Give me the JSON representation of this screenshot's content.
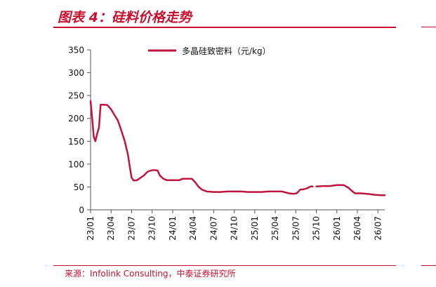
{
  "header": {
    "title": "图表 4：硅料价格走势"
  },
  "footer": {
    "source": "来源：Infolink Consulting，中泰证券研究所"
  },
  "colors": {
    "accent": "#c8102e",
    "series": "#c0143c"
  },
  "chart_data": {
    "type": "line",
    "title": "",
    "xlabel": "",
    "ylabel": "",
    "ylim": [
      0,
      350
    ],
    "yticks": [
      0,
      50,
      100,
      150,
      200,
      250,
      300,
      350
    ],
    "xlim": [
      "2023-01",
      "2026-08"
    ],
    "xtick_labels": [
      "23/01",
      "23/04",
      "23/07",
      "23/10",
      "24/01",
      "24/04",
      "24/07",
      "24/10",
      "25/01",
      "25/04",
      "25/07",
      "25/10",
      "26/01",
      "26/04",
      "26/07"
    ],
    "legend_position": "top-center",
    "grid": false,
    "series": [
      {
        "name": "多晶硅致密料（元/kg）",
        "segments": [
          [
            [
              "2023-01-01",
              238
            ],
            [
              "2023-01-08",
              200
            ],
            [
              "2023-01-15",
              160
            ],
            [
              "2023-01-22",
              150
            ],
            [
              "2023-02-01",
              168
            ],
            [
              "2023-02-08",
              180
            ],
            [
              "2023-02-15",
              230
            ],
            [
              "2023-03-01",
              230
            ],
            [
              "2023-03-15",
              229
            ],
            [
              "2023-04-01",
              220
            ],
            [
              "2023-04-15",
              208
            ],
            [
              "2023-05-01",
              195
            ],
            [
              "2023-05-15",
              175
            ],
            [
              "2023-06-01",
              150
            ],
            [
              "2023-06-15",
              120
            ],
            [
              "2023-06-25",
              88
            ],
            [
              "2023-07-01",
              70
            ],
            [
              "2023-07-10",
              64
            ],
            [
              "2023-07-25",
              65
            ],
            [
              "2023-08-10",
              70
            ],
            [
              "2023-08-25",
              75
            ],
            [
              "2023-09-10",
              83
            ],
            [
              "2023-09-25",
              86
            ],
            [
              "2023-10-10",
              87
            ],
            [
              "2023-10-25",
              86
            ],
            [
              "2023-11-05",
              75
            ],
            [
              "2023-11-20",
              68
            ],
            [
              "2023-12-05",
              65
            ],
            [
              "2024-01-01",
              65
            ],
            [
              "2024-02-01",
              65
            ],
            [
              "2024-02-15",
              68
            ],
            [
              "2024-03-01",
              68
            ],
            [
              "2024-03-25",
              68
            ],
            [
              "2024-04-10",
              60
            ],
            [
              "2024-04-25",
              50
            ],
            [
              "2024-05-10",
              44
            ],
            [
              "2024-06-01",
              40
            ],
            [
              "2024-07-01",
              39
            ],
            [
              "2024-08-01",
              39
            ],
            [
              "2024-09-01",
              40
            ],
            [
              "2024-10-01",
              40
            ],
            [
              "2024-11-01",
              40
            ],
            [
              "2024-12-01",
              39
            ],
            [
              "2025-01-01",
              39
            ],
            [
              "2025-02-01",
              39
            ],
            [
              "2025-03-01",
              40
            ],
            [
              "2025-04-01",
              40
            ],
            [
              "2025-05-01",
              40
            ],
            [
              "2025-06-01",
              36
            ],
            [
              "2025-06-20",
              35
            ],
            [
              "2025-07-05",
              36
            ],
            [
              "2025-07-20",
              44
            ],
            [
              "2025-08-05",
              45
            ],
            [
              "2025-08-20",
              47
            ],
            [
              "2025-09-05",
              51
            ],
            [
              "2025-09-15",
              51
            ]
          ],
          [
            [
              "2025-10-01",
              51
            ],
            [
              "2025-11-01",
              52
            ],
            [
              "2025-12-01",
              52
            ],
            [
              "2026-01-01",
              54
            ],
            [
              "2026-02-01",
              54
            ],
            [
              "2026-02-20",
              49
            ],
            [
              "2026-03-05",
              42
            ],
            [
              "2026-03-20",
              36
            ],
            [
              "2026-04-15",
              36
            ],
            [
              "2026-05-15",
              35
            ],
            [
              "2026-06-15",
              33
            ],
            [
              "2026-07-15",
              32
            ],
            [
              "2026-08-01",
              32
            ]
          ]
        ]
      }
    ]
  }
}
